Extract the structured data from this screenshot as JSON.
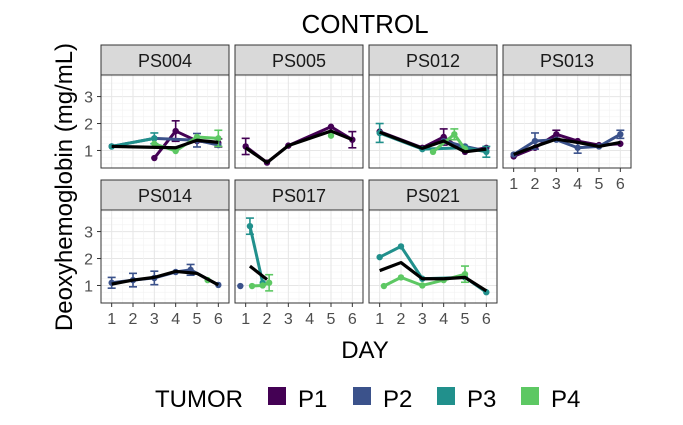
{
  "chart_data": {
    "type": "line",
    "title": "CONTROL",
    "xlabel": "DAY",
    "ylabel": "Deoxyhemoglobin (mg/mL)",
    "x_ticks": [
      "1",
      "2",
      "3",
      "4",
      "5",
      "6"
    ],
    "y_ticks": [
      "1",
      "2",
      "3"
    ],
    "xlim": [
      0.5,
      6.5
    ],
    "ylim": [
      0.35,
      3.8
    ],
    "grid": true,
    "legend": {
      "title": "TUMOR",
      "position": "bottom",
      "entries": [
        {
          "label": "P1",
          "color": "#440154"
        },
        {
          "label": "P2",
          "color": "#3B528B"
        },
        {
          "label": "P3",
          "color": "#21908C"
        },
        {
          "label": "P4",
          "color": "#5DC863"
        }
      ]
    },
    "mean_line_color": "#000000",
    "panels": [
      {
        "label": "PS004",
        "series": [
          {
            "tumor": "P1",
            "points": [
              {
                "x": 3,
                "y": 0.72
              },
              {
                "x": 4,
                "y": 1.72,
                "err": 0.38
              },
              {
                "x": 5,
                "y": 1.35
              },
              {
                "x": 6,
                "y": 1.28,
                "err": 0.15
              }
            ]
          },
          {
            "tumor": "P2",
            "points": [
              {
                "x": 1,
                "y": 1.15
              },
              {
                "x": 3,
                "y": 1.45
              },
              {
                "x": 5,
                "y": 1.38,
                "err": 0.25
              },
              {
                "x": 6,
                "y": 1.2
              }
            ]
          },
          {
            "tumor": "P3",
            "points": [
              {
                "x": 1,
                "y": 1.15
              },
              {
                "x": 3,
                "y": 1.45,
                "err": 0.2
              }
            ]
          },
          {
            "tumor": "P4",
            "points": [
              {
                "x": 3,
                "y": 1.25
              },
              {
                "x": 4,
                "y": 0.98
              },
              {
                "x": 5,
                "y": 1.5
              },
              {
                "x": 6,
                "y": 1.45,
                "err": 0.3
              }
            ]
          }
        ],
        "mean": [
          {
            "x": 1,
            "y": 1.15
          },
          {
            "x": 4,
            "y": 1.1
          },
          {
            "x": 5,
            "y": 1.38
          },
          {
            "x": 6,
            "y": 1.3
          }
        ]
      },
      {
        "label": "PS005",
        "series": [
          {
            "tumor": "P1",
            "points": [
              {
                "x": 1,
                "y": 1.15,
                "err": 0.3
              },
              {
                "x": 2,
                "y": 0.55
              },
              {
                "x": 3,
                "y": 1.18
              },
              {
                "x": 5,
                "y": 1.88
              },
              {
                "x": 6,
                "y": 1.4,
                "err": 0.3
              }
            ]
          },
          {
            "tumor": "P4",
            "points": [
              {
                "x": 5,
                "y": 1.55
              }
            ]
          }
        ],
        "mean": [
          {
            "x": 1,
            "y": 1.1
          },
          {
            "x": 2,
            "y": 0.55
          },
          {
            "x": 3,
            "y": 1.18
          },
          {
            "x": 5,
            "y": 1.72
          },
          {
            "x": 6,
            "y": 1.4
          }
        ]
      },
      {
        "label": "PS012",
        "series": [
          {
            "tumor": "P1",
            "points": [
              {
                "x": 1,
                "y": 1.7
              },
              {
                "x": 3,
                "y": 1.1
              },
              {
                "x": 4,
                "y": 1.5,
                "err": 0.3
              },
              {
                "x": 5,
                "y": 0.95
              },
              {
                "x": 6,
                "y": 1.1
              }
            ]
          },
          {
            "tumor": "P2",
            "points": [
              {
                "x": 4,
                "y": 1.35
              },
              {
                "x": 5,
                "y": 1.15
              },
              {
                "x": 6,
                "y": 0.98
              }
            ]
          },
          {
            "tumor": "P3",
            "points": [
              {
                "x": 1,
                "y": 1.65,
                "err": 0.35
              },
              {
                "x": 3,
                "y": 1.05
              },
              {
                "x": 5,
                "y": 1.1
              },
              {
                "x": 6,
                "y": 0.95,
                "err": 0.2
              }
            ]
          },
          {
            "tumor": "P4",
            "points": [
              {
                "x": 3.5,
                "y": 0.95
              },
              {
                "x": 4.5,
                "y": 1.6,
                "err": 0.2
              },
              {
                "x": 5,
                "y": 1.05
              }
            ]
          }
        ],
        "mean": [
          {
            "x": 1,
            "y": 1.68
          },
          {
            "x": 3,
            "y": 1.08
          },
          {
            "x": 4,
            "y": 1.35
          },
          {
            "x": 5,
            "y": 0.95
          },
          {
            "x": 6,
            "y": 1.05
          }
        ]
      },
      {
        "label": "PS013",
        "series": [
          {
            "tumor": "P1",
            "points": [
              {
                "x": 1,
                "y": 0.78
              },
              {
                "x": 2,
                "y": 1.1
              },
              {
                "x": 3,
                "y": 1.6,
                "err": 0.15
              },
              {
                "x": 4,
                "y": 1.35
              },
              {
                "x": 5,
                "y": 1.2
              },
              {
                "x": 6,
                "y": 1.25
              }
            ]
          },
          {
            "tumor": "P2",
            "points": [
              {
                "x": 1,
                "y": 0.85
              },
              {
                "x": 2,
                "y": 1.35,
                "err": 0.3
              },
              {
                "x": 3,
                "y": 1.4
              },
              {
                "x": 4,
                "y": 1.1,
                "err": 0.2
              },
              {
                "x": 5,
                "y": 1.15
              },
              {
                "x": 6,
                "y": 1.6,
                "err": 0.15
              }
            ]
          }
        ],
        "mean": [
          {
            "x": 1,
            "y": 0.85
          },
          {
            "x": 2,
            "y": 1.15
          },
          {
            "x": 3,
            "y": 1.42
          },
          {
            "x": 4,
            "y": 1.3
          },
          {
            "x": 5,
            "y": 1.15
          },
          {
            "x": 6,
            "y": 1.3
          }
        ]
      },
      {
        "label": "PS014",
        "series": [
          {
            "tumor": "P2",
            "points": [
              {
                "x": 1,
                "y": 1.1,
                "err": 0.2
              },
              {
                "x": 2,
                "y": 1.2,
                "err": 0.25
              },
              {
                "x": 3,
                "y": 1.28,
                "err": 0.25
              },
              {
                "x": 4,
                "y": 1.5
              },
              {
                "x": 4.7,
                "y": 1.58,
                "err": 0.2
              },
              {
                "x": 6,
                "y": 1.02
              }
            ]
          },
          {
            "tumor": "P4",
            "points": [
              {
                "x": 5.5,
                "y": 1.2
              }
            ]
          }
        ],
        "mean": [
          {
            "x": 1,
            "y": 1.05
          },
          {
            "x": 2,
            "y": 1.2
          },
          {
            "x": 3,
            "y": 1.3
          },
          {
            "x": 4,
            "y": 1.52
          },
          {
            "x": 5,
            "y": 1.45
          },
          {
            "x": 6,
            "y": 1.02
          }
        ]
      },
      {
        "label": "PS017",
        "series": [
          {
            "tumor": "P2",
            "points": [
              {
                "x": 0.75,
                "y": 0.98
              }
            ]
          },
          {
            "tumor": "P3",
            "points": [
              {
                "x": 1.2,
                "y": 3.2,
                "err": 0.3
              },
              {
                "x": 1.8,
                "y": 1.1
              }
            ]
          },
          {
            "tumor": "P4",
            "points": [
              {
                "x": 1.3,
                "y": 0.98
              },
              {
                "x": 1.8,
                "y": 1.0
              },
              {
                "x": 2.1,
                "y": 1.1,
                "err": 0.3
              }
            ]
          }
        ],
        "mean": [
          {
            "x": 1.2,
            "y": 1.72
          },
          {
            "x": 2,
            "y": 1.22
          }
        ]
      },
      {
        "label": "PS021",
        "series": [
          {
            "tumor": "P3",
            "points": [
              {
                "x": 1,
                "y": 2.05
              },
              {
                "x": 2,
                "y": 2.45
              },
              {
                "x": 3,
                "y": 1.25
              },
              {
                "x": 5,
                "y": 1.3
              },
              {
                "x": 6,
                "y": 0.75
              }
            ]
          },
          {
            "tumor": "P4",
            "points": [
              {
                "x": 1.2,
                "y": 0.98
              },
              {
                "x": 2,
                "y": 1.3
              },
              {
                "x": 3,
                "y": 1.0
              },
              {
                "x": 4,
                "y": 1.2
              },
              {
                "x": 5,
                "y": 1.42,
                "err": 0.3
              }
            ]
          }
        ],
        "mean": [
          {
            "x": 1,
            "y": 1.55
          },
          {
            "x": 2,
            "y": 1.85
          },
          {
            "x": 3,
            "y": 1.25
          },
          {
            "x": 4,
            "y": 1.25
          },
          {
            "x": 5,
            "y": 1.3
          },
          {
            "x": 6,
            "y": 0.8
          }
        ]
      }
    ]
  }
}
